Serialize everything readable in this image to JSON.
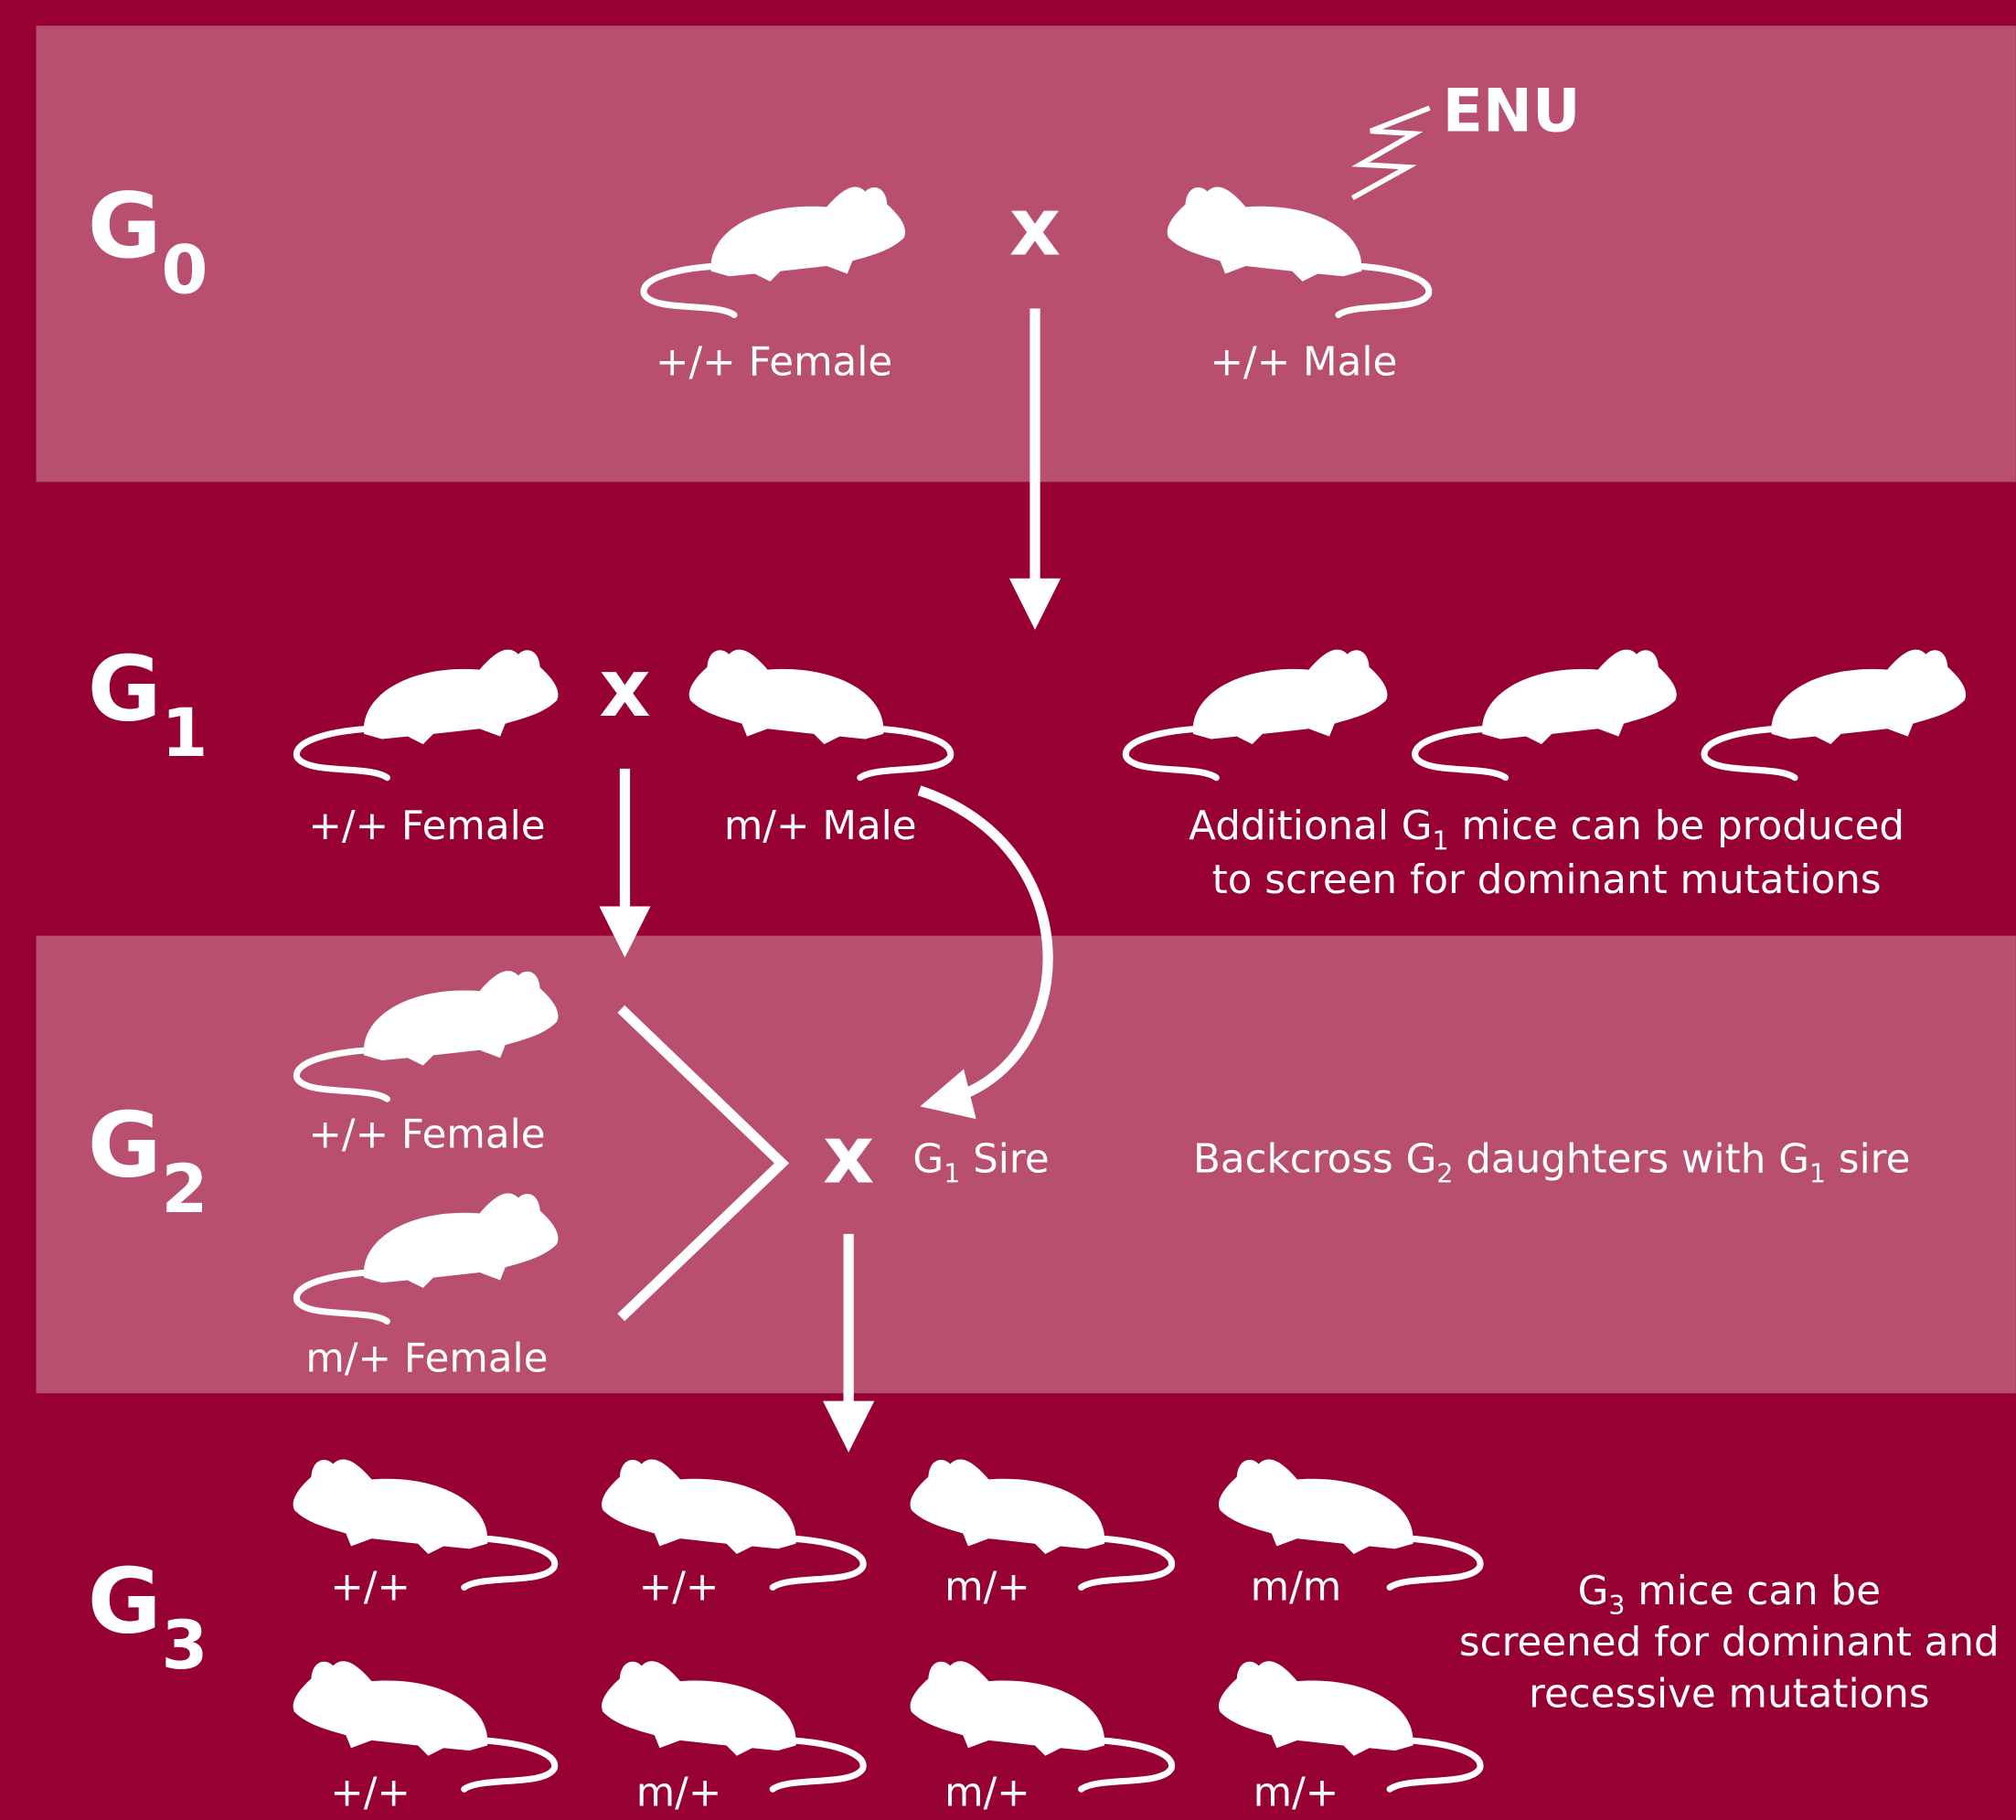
{
  "mutagen": "ENU",
  "cross_symbol": "x",
  "generations": [
    {
      "letter": "G",
      "sub": "0"
    },
    {
      "letter": "G",
      "sub": "1"
    },
    {
      "letter": "G",
      "sub": "2"
    },
    {
      "letter": "G",
      "sub": "3"
    }
  ],
  "g0": {
    "female": "+/+ Female",
    "male": "+/+ Male"
  },
  "g1": {
    "female": "+/+ Female",
    "male": "m/+ Male",
    "note": [
      [
        "Additional G",
        "1",
        " mice can be produced"
      ],
      [
        "to screen for dominant mutations"
      ]
    ]
  },
  "g2": {
    "females": [
      "+/+ Female",
      "m/+ Female"
    ],
    "sire": [
      "G",
      "1",
      " Sire"
    ],
    "note": [
      "Backcross G",
      "2",
      " daughters with G",
      "1",
      " sire"
    ]
  },
  "g3": {
    "genotypes": [
      [
        "+/+",
        "+/+",
        "m/+",
        "m/m"
      ],
      [
        "+/+",
        "m/+",
        "m/+",
        "m/+"
      ]
    ],
    "note": [
      [
        "G",
        "3",
        " mice can be"
      ],
      [
        "screened for dominant and"
      ],
      [
        "recessive mutations"
      ]
    ]
  }
}
